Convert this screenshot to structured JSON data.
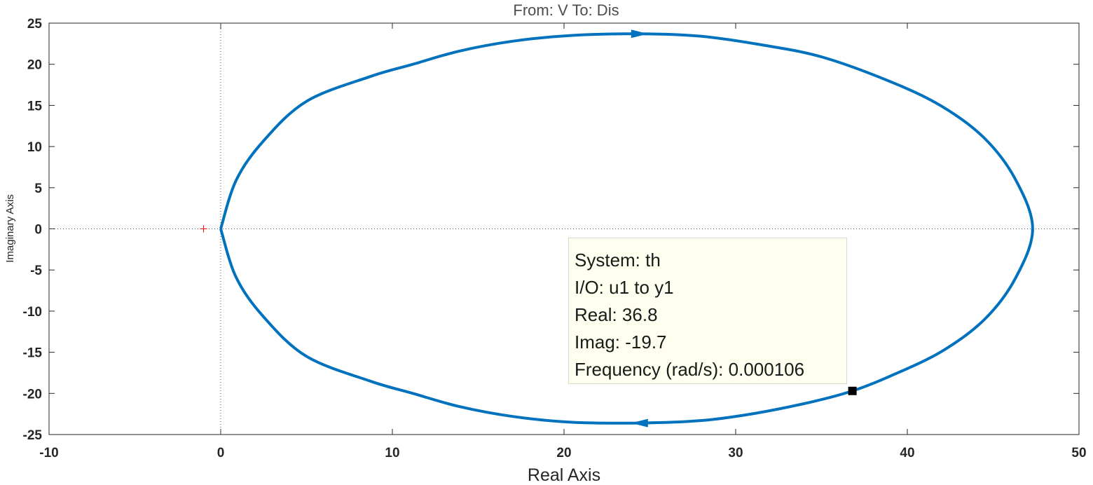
{
  "chart_data": {
    "type": "line",
    "title": "From: V  To: Dis",
    "xlabel": "Real Axis",
    "ylabel": "Imaginary Axis",
    "xlim": [
      -10,
      50
    ],
    "ylim": [
      -25,
      25
    ],
    "xticks": [
      -10,
      0,
      10,
      20,
      30,
      40,
      50
    ],
    "yticks": [
      25,
      20,
      15,
      10,
      5,
      0,
      -5,
      -10,
      -15,
      -20,
      -25
    ],
    "grid": false,
    "series": [
      {
        "color": "#0072bd",
        "shape": "closed loop (Nyquist contour)",
        "points": [
          [
            0.0,
            0.0
          ],
          [
            0.9,
            5.9
          ],
          [
            2.5,
            10.7
          ],
          [
            5.0,
            15.5
          ],
          [
            8.7,
            18.5
          ],
          [
            11.2,
            20.0
          ],
          [
            13.9,
            21.6
          ],
          [
            17.0,
            22.8
          ],
          [
            20.4,
            23.5
          ],
          [
            24.4,
            23.7
          ],
          [
            28.0,
            23.4
          ],
          [
            31.4,
            22.4
          ],
          [
            35.0,
            20.9
          ],
          [
            39.0,
            17.9
          ],
          [
            42.0,
            14.9
          ],
          [
            44.5,
            11.0
          ],
          [
            46.3,
            6.0
          ],
          [
            47.3,
            0.0
          ],
          [
            46.3,
            -6.0
          ],
          [
            44.5,
            -11.0
          ],
          [
            42.0,
            -14.9
          ],
          [
            39.0,
            -17.9
          ],
          [
            36.8,
            -19.7
          ],
          [
            34.5,
            -21.0
          ],
          [
            31.2,
            -22.4
          ],
          [
            28.0,
            -23.3
          ],
          [
            24.4,
            -23.6
          ],
          [
            20.4,
            -23.5
          ],
          [
            17.0,
            -22.8
          ],
          [
            13.9,
            -21.6
          ],
          [
            11.2,
            -20.0
          ],
          [
            8.7,
            -18.5
          ],
          [
            5.0,
            -15.5
          ],
          [
            2.5,
            -10.7
          ],
          [
            0.9,
            -5.9
          ],
          [
            0.0,
            0.0
          ]
        ],
        "direction_arrows": [
          [
            24.4,
            23.7,
            "right"
          ],
          [
            24.4,
            -23.6,
            "left"
          ]
        ]
      }
    ],
    "critical_point": {
      "x": -1,
      "y": 0,
      "marker": "+",
      "color": "#ff0000"
    },
    "datatip": {
      "x": 36.8,
      "y": -19.7,
      "lines": [
        "System: th",
        "I/O: u1 to y1",
        "Real: 36.8",
        "Imag: -19.7",
        "Frequency (rad/s): 0.000106"
      ]
    }
  }
}
